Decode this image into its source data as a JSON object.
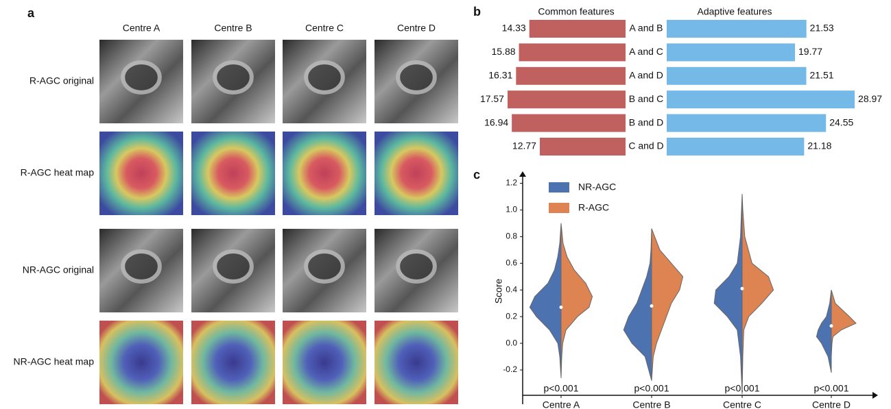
{
  "panel_labels": [
    "a",
    "b",
    "c"
  ],
  "image_grid": {
    "columns": [
      "Centre A",
      "Centre B",
      "Centre C",
      "Centre D"
    ],
    "rows": [
      "R-AGC original",
      "R-AGC heat map",
      "NR-AGC original",
      "NR-AGC heat map"
    ]
  },
  "chart_data": [
    {
      "type": "butterfly-bar",
      "categories": [
        "A and B",
        "A and C",
        "A and D",
        "B and C",
        "B and D",
        "C and D"
      ],
      "series": [
        {
          "name": "Common features",
          "color": "#c0605f",
          "values": [
            14.33,
            15.88,
            16.31,
            17.57,
            16.94,
            12.77
          ]
        },
        {
          "name": "Adaptive features",
          "color": "#74b9e7",
          "values": [
            21.53,
            19.77,
            21.51,
            28.97,
            24.55,
            21.18
          ]
        }
      ]
    },
    {
      "type": "violin",
      "categories": [
        "Centre A",
        "Centre B",
        "Centre C",
        "Centre D"
      ],
      "annotations": [
        "p<0.001",
        "p<0.001",
        "p<0.001",
        "p<0.001"
      ],
      "y_label": "Score",
      "ylim": [
        -0.39,
        1.29
      ],
      "yticks": [
        -0.2,
        {
          "value": 0,
          "label": "0.0"
        },
        0.2,
        0.4,
        0.6,
        0.8,
        {
          "value": 1,
          "label": "1.0"
        },
        1.2
      ],
      "medians": [
        0.27,
        0.28,
        0.41,
        0.13
      ],
      "series": [
        {
          "name": "NR-AGC",
          "color": "#4c72b0",
          "violins": [
            {
              "y": [
                -0.26,
                -0.1,
                0.0,
                0.1,
                0.2,
                0.27,
                0.35,
                0.45,
                0.55,
                0.65,
                0.75,
                0.9
              ],
              "density": [
                0,
                0.04,
                0.1,
                0.35,
                0.75,
                0.95,
                0.8,
                0.4,
                0.2,
                0.1,
                0.04,
                0
              ]
            },
            {
              "y": [
                -0.28,
                -0.1,
                0.0,
                0.1,
                0.2,
                0.3,
                0.4,
                0.5,
                0.6,
                0.7,
                0.86
              ],
              "density": [
                0,
                0.2,
                0.6,
                0.85,
                0.7,
                0.45,
                0.3,
                0.15,
                0.05,
                0.02,
                0
              ]
            },
            {
              "y": [
                -0.38,
                -0.1,
                0.1,
                0.2,
                0.3,
                0.4,
                0.5,
                0.6,
                0.8,
                1.0,
                1.12
              ],
              "density": [
                0,
                0.05,
                0.15,
                0.45,
                0.85,
                0.8,
                0.4,
                0.15,
                0.05,
                0.02,
                0
              ]
            },
            {
              "y": [
                -0.22,
                -0.1,
                0.0,
                0.05,
                0.1,
                0.15,
                0.2,
                0.3,
                0.4
              ],
              "density": [
                0,
                0.1,
                0.3,
                0.45,
                0.4,
                0.3,
                0.15,
                0.05,
                0
              ]
            }
          ]
        },
        {
          "name": "R-AGC",
          "color": "#dd8452",
          "violins": [
            {
              "y": [
                -0.26,
                -0.1,
                0.0,
                0.1,
                0.2,
                0.27,
                0.35,
                0.45,
                0.55,
                0.65,
                0.75,
                0.9
              ],
              "density": [
                0,
                0.02,
                0.05,
                0.15,
                0.5,
                0.85,
                0.95,
                0.75,
                0.4,
                0.18,
                0.06,
                0
              ]
            },
            {
              "y": [
                -0.28,
                -0.1,
                0.0,
                0.1,
                0.2,
                0.3,
                0.4,
                0.5,
                0.6,
                0.7,
                0.86
              ],
              "density": [
                0,
                0.05,
                0.15,
                0.3,
                0.45,
                0.6,
                0.85,
                0.95,
                0.6,
                0.25,
                0
              ]
            },
            {
              "y": [
                -0.38,
                -0.1,
                0.1,
                0.2,
                0.3,
                0.4,
                0.5,
                0.6,
                0.8,
                1.0,
                1.12
              ],
              "density": [
                0,
                0.02,
                0.05,
                0.2,
                0.6,
                0.95,
                0.8,
                0.3,
                0.08,
                0.02,
                0
              ]
            },
            {
              "y": [
                -0.22,
                -0.1,
                0.0,
                0.05,
                0.1,
                0.15,
                0.2,
                0.3,
                0.4
              ],
              "density": [
                0,
                0,
                0.02,
                0.05,
                0.3,
                0.75,
                0.55,
                0.12,
                0
              ]
            }
          ]
        }
      ]
    }
  ]
}
